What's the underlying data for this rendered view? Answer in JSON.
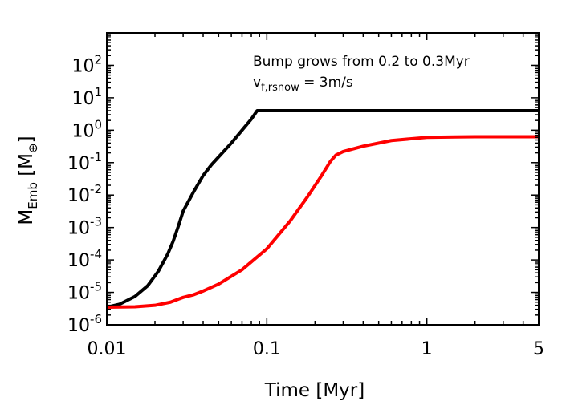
{
  "chart_data": {
    "type": "line",
    "title": "",
    "xlabel": "Time [Myr]",
    "ylabel": {
      "base": "M",
      "sub": "Emb",
      "unit_open": " [M",
      "unit_sub": "⊕",
      "unit_close": "]"
    },
    "xscale": "log",
    "yscale": "log",
    "xlim": [
      0.01,
      5
    ],
    "ylim": [
      1e-06,
      1000
    ],
    "x_ticks": [
      {
        "value": 0.01,
        "label": "0.01"
      },
      {
        "value": 0.1,
        "label": "0.1"
      },
      {
        "value": 1,
        "label": "1"
      },
      {
        "value": 5,
        "label": "5"
      }
    ],
    "y_ticks": [
      {
        "value": 1e-06,
        "base": "10",
        "exp": "-6"
      },
      {
        "value": 1e-05,
        "base": "10",
        "exp": "-5"
      },
      {
        "value": 0.0001,
        "base": "10",
        "exp": "-4"
      },
      {
        "value": 0.001,
        "base": "10",
        "exp": "-3"
      },
      {
        "value": 0.01,
        "base": "10",
        "exp": "-2"
      },
      {
        "value": 0.1,
        "base": "10",
        "exp": "-1"
      },
      {
        "value": 1,
        "base": "10",
        "exp": "0"
      },
      {
        "value": 10,
        "base": "10",
        "exp": "1"
      },
      {
        "value": 100,
        "base": "10",
        "exp": "2"
      }
    ],
    "annotations": [
      {
        "text": "Bump grows from 0.2 to 0.3Myr"
      },
      {
        "base": "v",
        "sub": "f,rsnow",
        "rest": " = 3m/s"
      }
    ],
    "series": [
      {
        "name": "black",
        "color": "#000000",
        "x": [
          0.01,
          0.012,
          0.015,
          0.018,
          0.021,
          0.024,
          0.026,
          0.028,
          0.03,
          0.035,
          0.04,
          0.045,
          0.05,
          0.06,
          0.07,
          0.08,
          0.087,
          0.1,
          0.2,
          0.5,
          1,
          2,
          5
        ],
        "y": [
          3.5e-06,
          4.3e-06,
          7.5e-06,
          1.6e-05,
          4.5e-05,
          0.00015,
          0.00038,
          0.0011,
          0.0032,
          0.013,
          0.04,
          0.085,
          0.15,
          0.4,
          1.0,
          2.2,
          4.0,
          4.0,
          4.0,
          4.0,
          4.0,
          4.0,
          4.0
        ]
      },
      {
        "name": "red",
        "color": "#ff0000",
        "x": [
          0.01,
          0.015,
          0.02,
          0.025,
          0.028,
          0.03,
          0.035,
          0.04,
          0.05,
          0.07,
          0.1,
          0.14,
          0.18,
          0.22,
          0.25,
          0.27,
          0.3,
          0.4,
          0.6,
          1,
          1.5,
          2,
          3,
          5
        ],
        "y": [
          3.5e-06,
          3.6e-06,
          4e-06,
          5e-06,
          6.2e-06,
          7e-06,
          8.5e-06,
          1.1e-05,
          1.8e-05,
          5e-05,
          0.00022,
          0.0016,
          0.009,
          0.04,
          0.11,
          0.17,
          0.22,
          0.32,
          0.48,
          0.6,
          0.62,
          0.63,
          0.63,
          0.63
        ]
      }
    ]
  }
}
